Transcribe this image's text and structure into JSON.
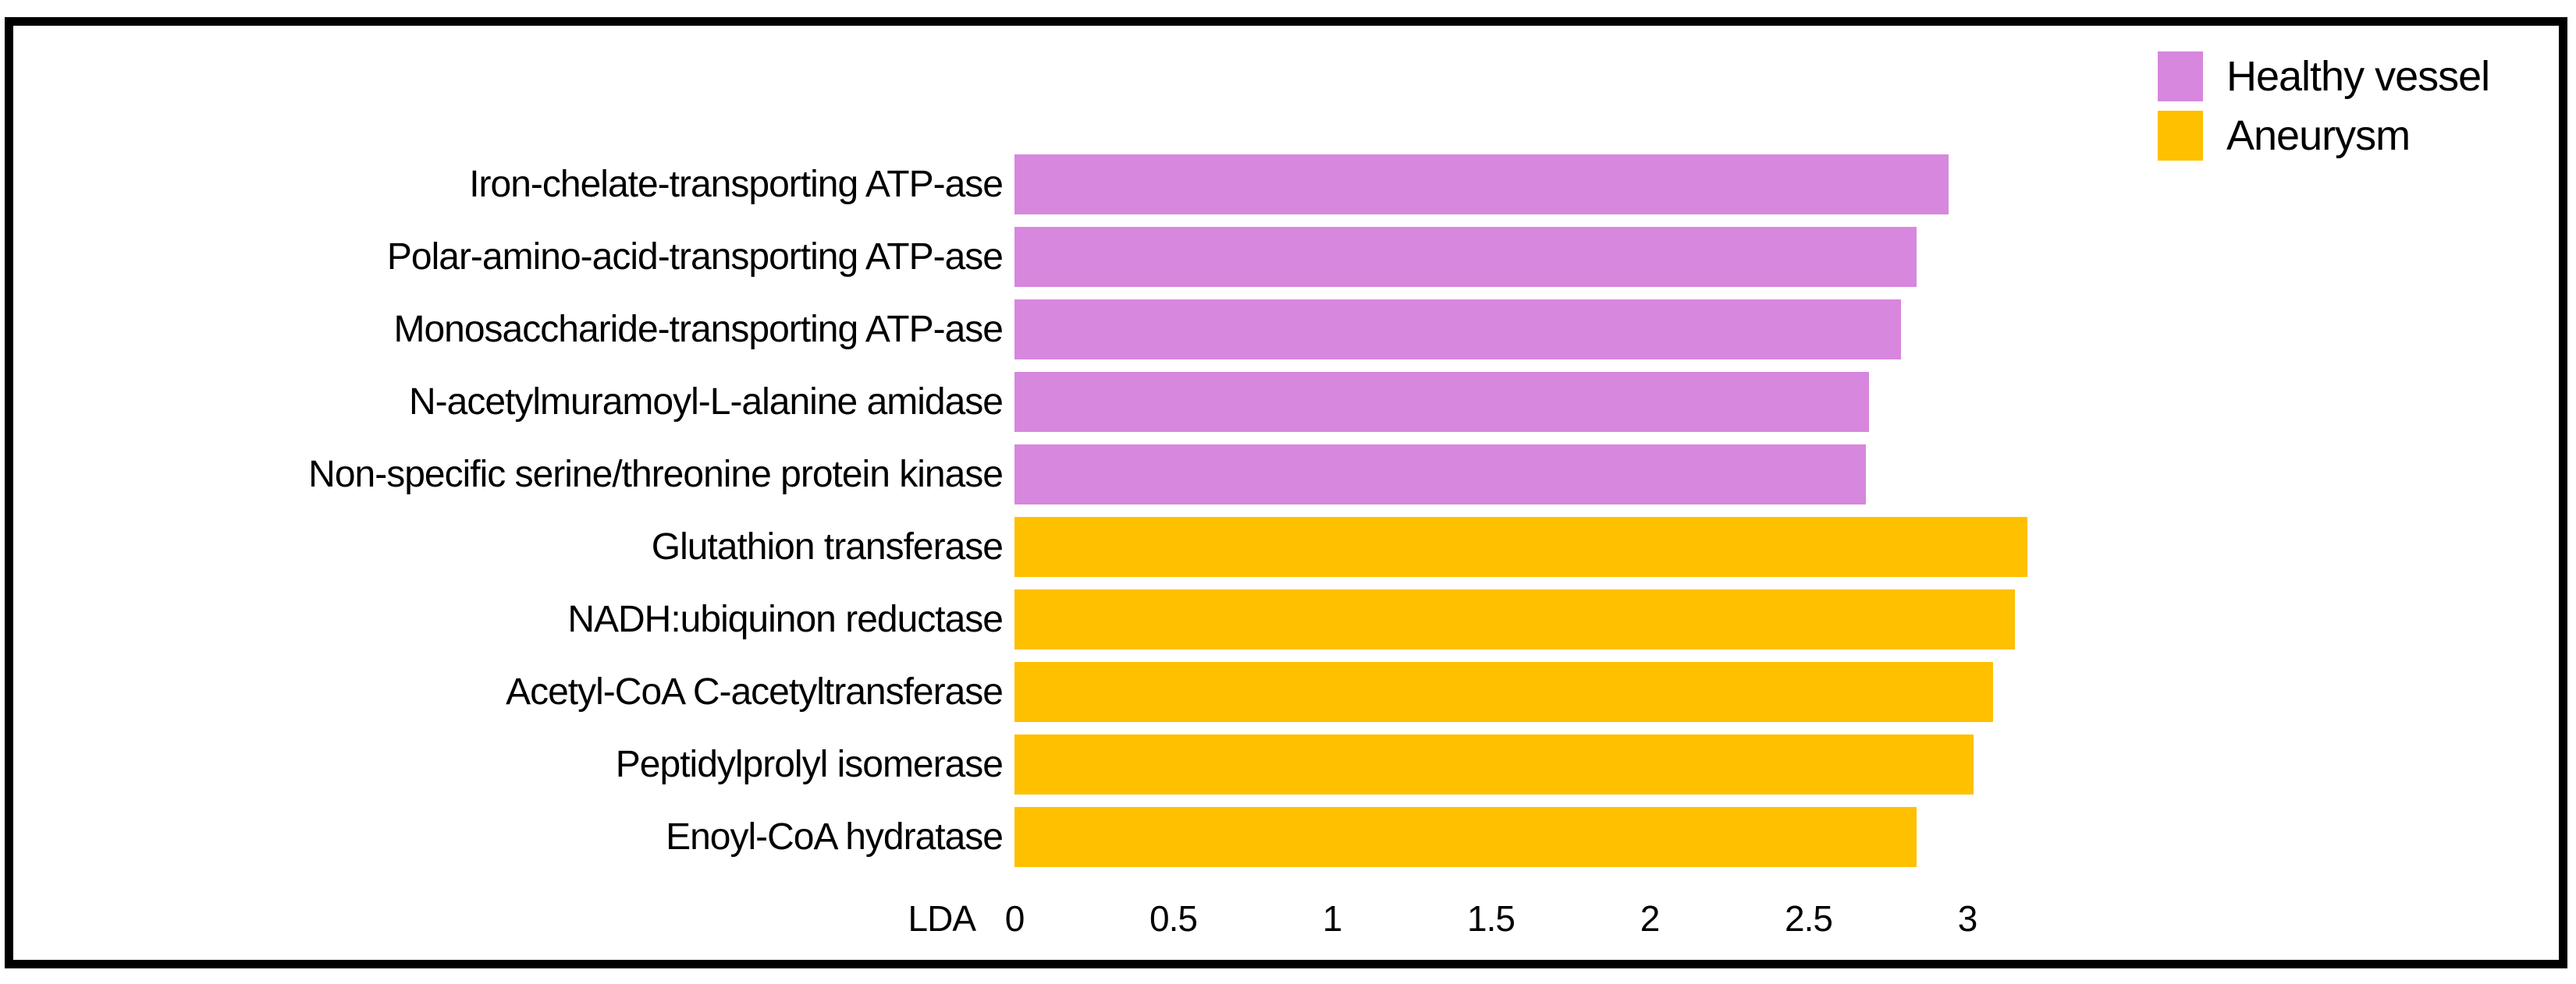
{
  "page": {
    "background": "#ffffff",
    "frame_border_color": "#000000"
  },
  "legend": {
    "items": [
      {
        "label": "Healthy vessel",
        "color": "#d787de"
      },
      {
        "label": "Aneurysm",
        "color": "#ffc000"
      }
    ]
  },
  "chart_data": {
    "type": "bar",
    "orientation": "horizontal",
    "title": "",
    "xlabel": "LDA",
    "ylabel": "",
    "xlim": [
      0,
      3.3
    ],
    "grid": false,
    "legend_position": "top-right",
    "xticks": [
      0,
      0.5,
      1,
      1.5,
      2,
      2.5,
      3
    ],
    "xtick_labels": [
      "0",
      "0.5",
      "1",
      "1.5",
      "2",
      "2.5",
      "3"
    ],
    "groups": {
      "Healthy vessel": "#d787de",
      "Aneurysm": "#ffc000"
    },
    "categories": [
      "Iron-chelate-transporting ATP-ase",
      "Polar-amino-acid-transporting ATP-ase",
      "Monosaccharide-transporting ATP-ase",
      "N-acetylmuramoyl-L-alanine amidase",
      "Non-specific serine/threonine protein kinase",
      "Glutathion transferase",
      "NADH:ubiquinon reductase",
      "Acetyl-CoA C-acetyltransferase",
      "Peptidylprolyl isomerase",
      "Enoyl-CoA hydratase"
    ],
    "items": [
      {
        "label": "Iron-chelate-transporting ATP-ase",
        "value": 2.94,
        "group": "Healthy vessel"
      },
      {
        "label": "Polar-amino-acid-transporting ATP-ase",
        "value": 2.84,
        "group": "Healthy vessel"
      },
      {
        "label": "Monosaccharide-transporting ATP-ase",
        "value": 2.79,
        "group": "Healthy vessel"
      },
      {
        "label": "N-acetylmuramoyl-L-alanine amidase",
        "value": 2.69,
        "group": "Healthy vessel"
      },
      {
        "label": "Non-specific serine/threonine protein kinase",
        "value": 2.68,
        "group": "Healthy vessel"
      },
      {
        "label": "Glutathion transferase",
        "value": 3.19,
        "group": "Aneurysm"
      },
      {
        "label": "NADH:ubiquinon reductase",
        "value": 3.15,
        "group": "Aneurysm"
      },
      {
        "label": "Acetyl-CoA C-acetyltransferase",
        "value": 3.08,
        "group": "Aneurysm"
      },
      {
        "label": "Peptidylprolyl isomerase",
        "value": 3.02,
        "group": "Aneurysm"
      },
      {
        "label": "Enoyl-CoA hydratase",
        "value": 2.84,
        "group": "Aneurysm"
      }
    ]
  }
}
